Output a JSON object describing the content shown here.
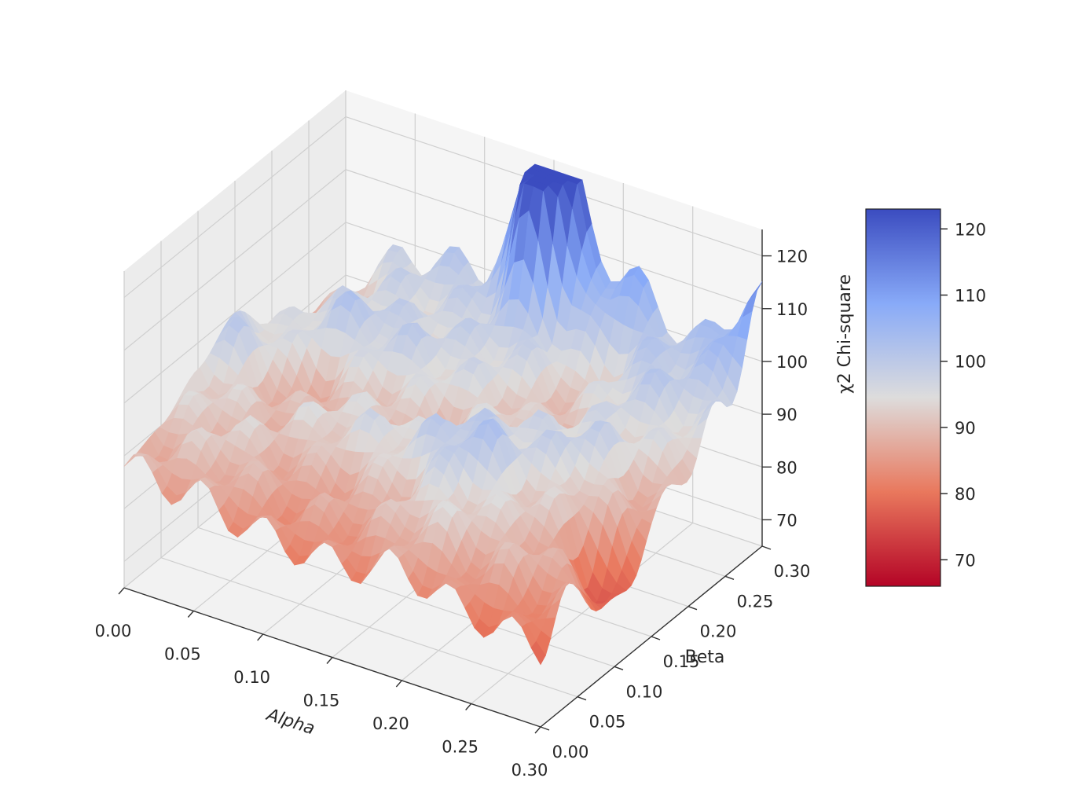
{
  "chart_data": {
    "type": "surface",
    "title": "",
    "xlabel": "Alpha",
    "ylabel": "Beta",
    "zlabel": "χ2 Chi-square",
    "colormap": "coolwarm_r",
    "xlim": [
      0.0,
      0.3
    ],
    "ylim": [
      0.0,
      0.3
    ],
    "zlim": [
      65,
      125
    ],
    "xticks": [
      "0.00",
      "0.05",
      "0.10",
      "0.15",
      "0.20",
      "0.25",
      "0.30"
    ],
    "yticks": [
      "0.00",
      "0.05",
      "0.10",
      "0.15",
      "0.20",
      "0.25",
      "0.30"
    ],
    "zticks": [
      "70",
      "80",
      "90",
      "100",
      "110",
      "120"
    ],
    "grid": true,
    "colorbar": {
      "range": [
        66,
        123
      ],
      "ticks": [
        "70",
        "80",
        "90",
        "100",
        "110",
        "120"
      ],
      "colors": {
        "low": "#b40426",
        "mid": "#dddddd",
        "high": "#3b4cc0"
      }
    },
    "surface": {
      "alpha": [
        0.0,
        0.05,
        0.1,
        0.15,
        0.2,
        0.25,
        0.3
      ],
      "beta": [
        0.0,
        0.05,
        0.1,
        0.15,
        0.2,
        0.25,
        0.3
      ],
      "z": [
        [
          88,
          90,
          95,
          100,
          92,
          88,
          87
        ],
        [
          87,
          92,
          90,
          88,
          100,
          96,
          98
        ],
        [
          84,
          86,
          94,
          92,
          98,
          96,
          100
        ],
        [
          83,
          88,
          96,
          90,
          95,
          98,
          118
        ],
        [
          86,
          94,
          102,
          96,
          90,
          92,
          108
        ],
        [
          82,
          90,
          92,
          98,
          96,
          100,
          100
        ],
        [
          80,
          86,
          75,
          86,
          92,
          98,
          112
        ]
      ]
    }
  }
}
